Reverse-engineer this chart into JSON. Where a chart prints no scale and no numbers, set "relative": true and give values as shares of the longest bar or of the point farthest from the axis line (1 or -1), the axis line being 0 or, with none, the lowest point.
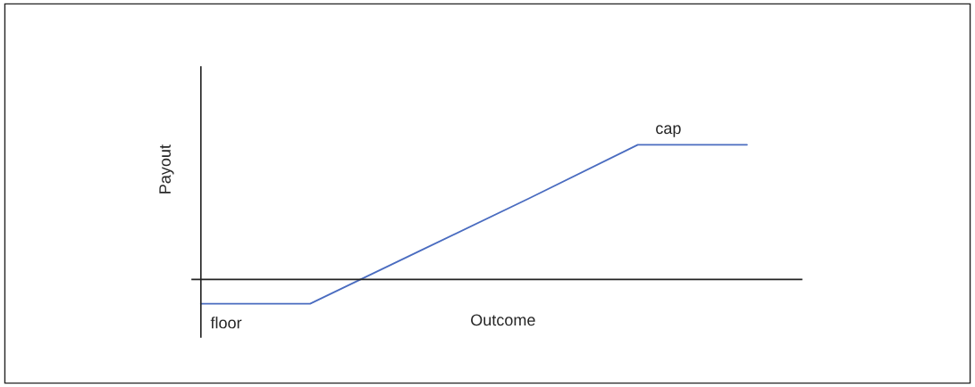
{
  "chart_data": {
    "type": "line",
    "relative": true,
    "xlabel": "Outcome",
    "ylabel": "Payout",
    "categories": [
      null,
      null,
      null,
      null,
      null,
      null
    ],
    "series": [
      {
        "color": "#4a6cc0",
        "values": [
          -0.18,
          -0.18,
          0.21,
          0.6,
          1,
          1
        ]
      }
    ],
    "annotations": [
      "floor",
      "cap"
    ],
    "marker": "none",
    "line_style": "solid",
    "legend": false
  }
}
